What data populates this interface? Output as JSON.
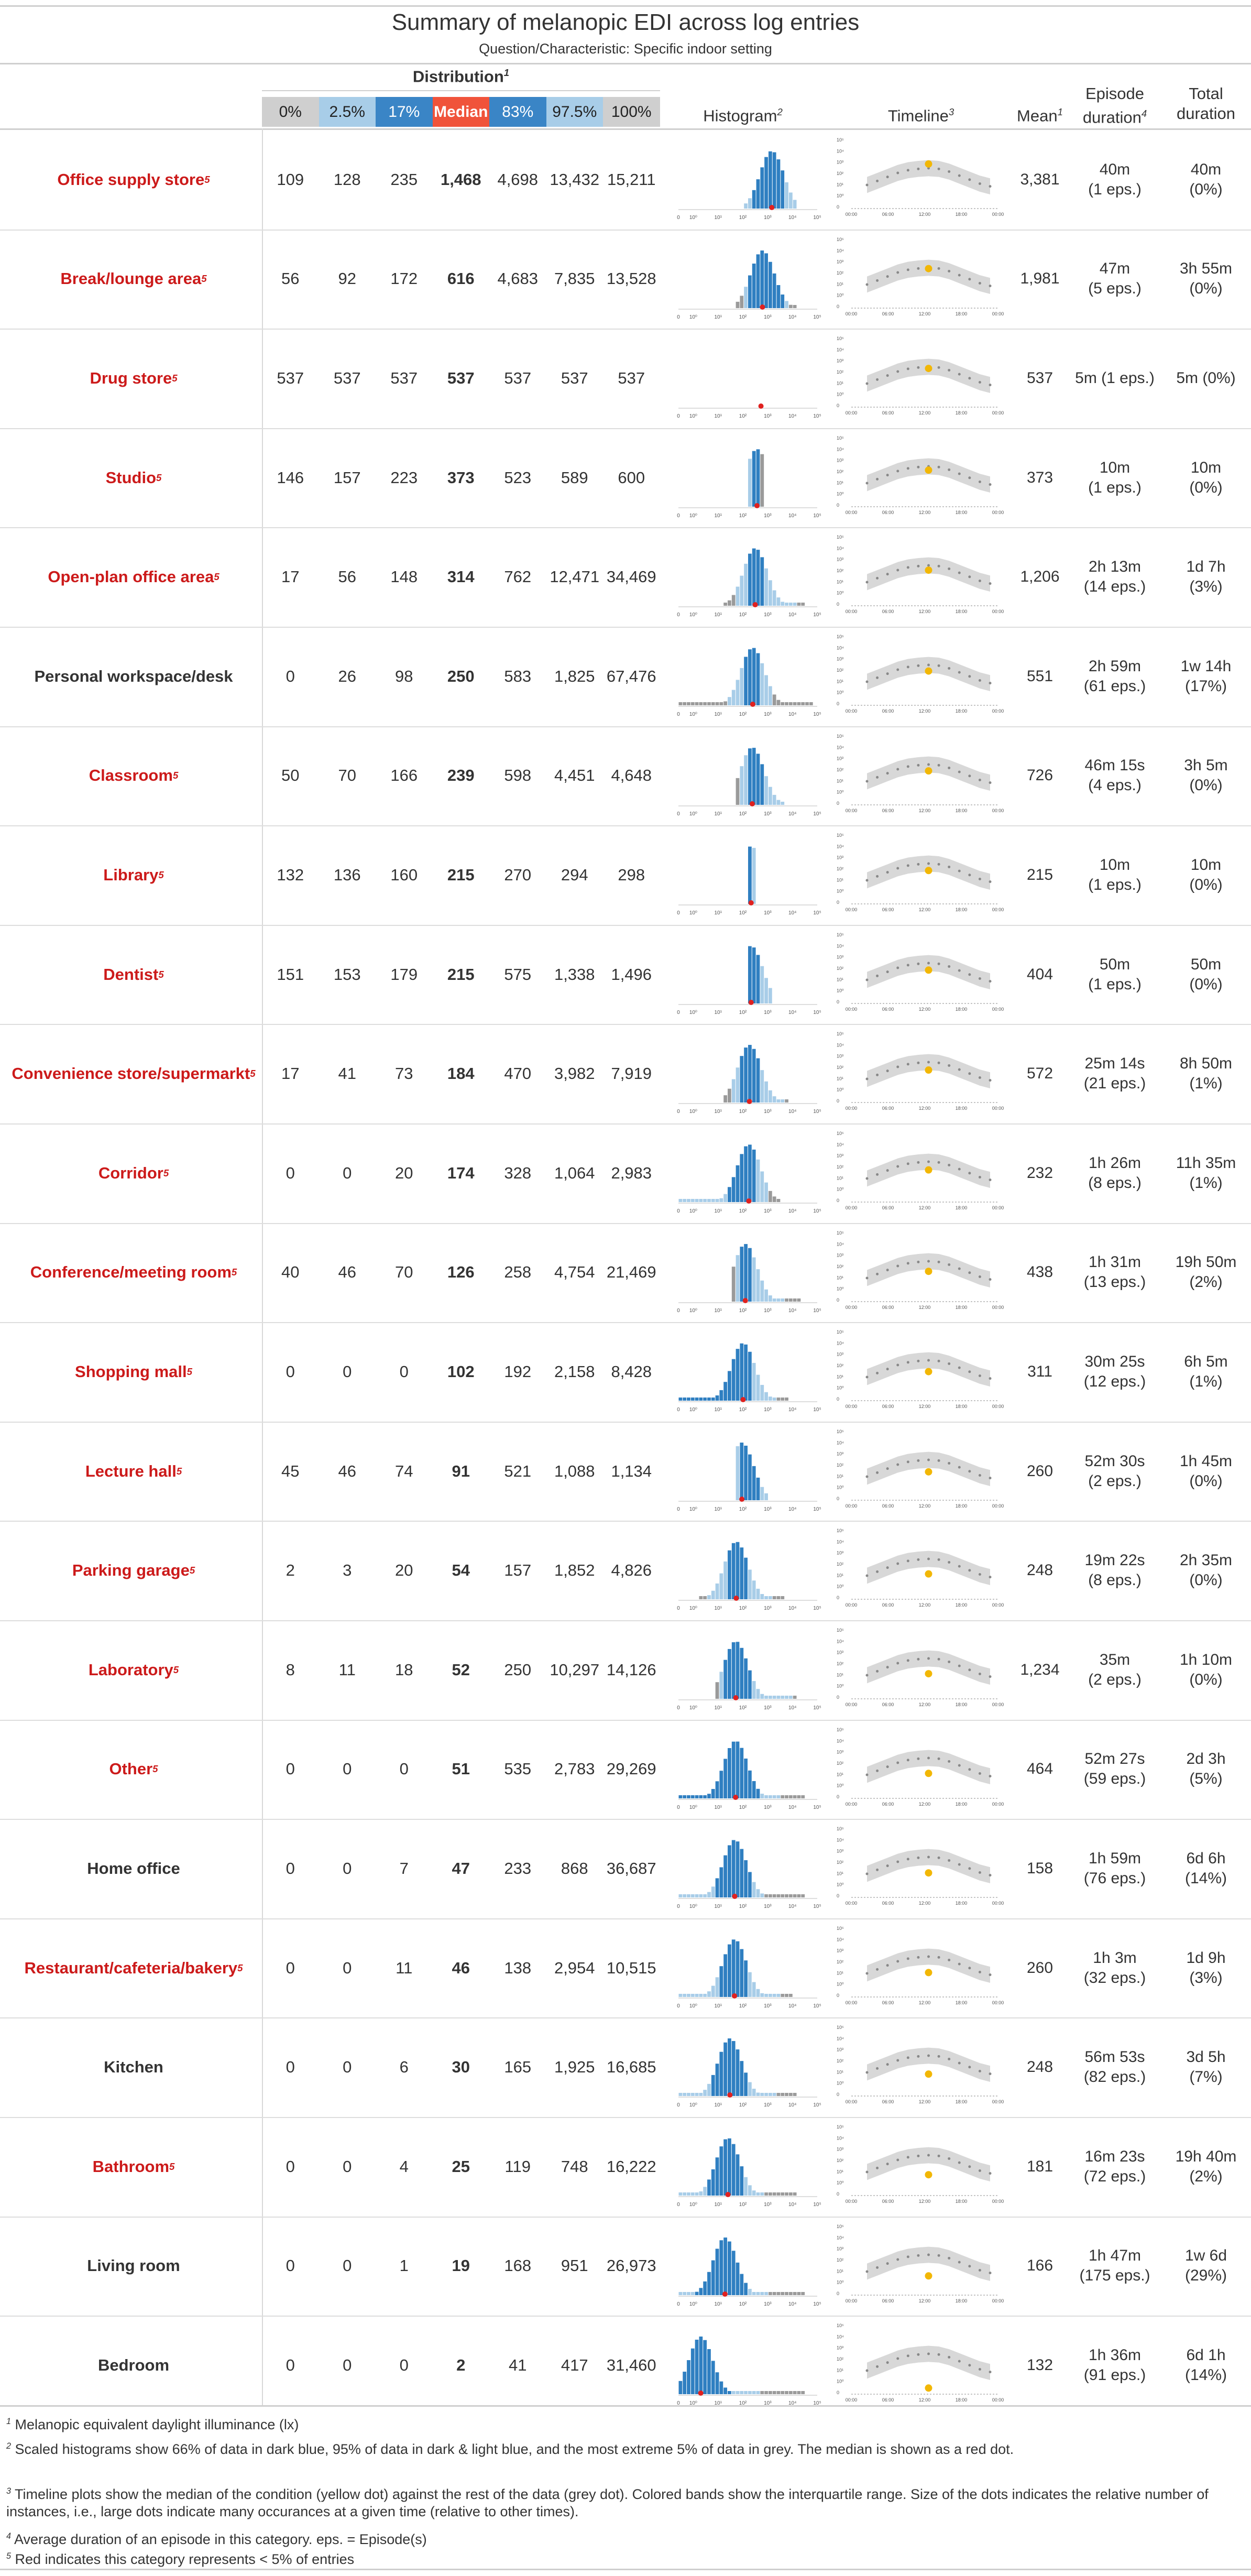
{
  "title": "Summary of melanopic EDI across log entries",
  "subtitle": "Question/Characteristic: Specific indoor setting",
  "headers": {
    "distribution": "Distribution",
    "distribution_fn": "1",
    "histogram": "Histogram",
    "histogram_fn": "2",
    "timeline": "Timeline",
    "timeline_fn": "3",
    "mean": "Mean",
    "mean_fn": "1",
    "episode_duration": "Episode duration",
    "episode_fn": "4",
    "total_duration": "Total duration"
  },
  "quantiles": [
    "0%",
    "2.5%",
    "17%",
    "Median",
    "83%",
    "97.5%",
    "100%"
  ],
  "quantile_colors": [
    "#cfcfcf",
    "#a8cde8",
    "#3a85c6",
    "#f0533a",
    "#3a85c6",
    "#a8cde8",
    "#cfcfcf"
  ],
  "red_color": "#cc1a1a",
  "hist_axis_ticks": [
    "0",
    "10⁰",
    "10¹",
    "10²",
    "10³",
    "10⁴",
    "10⁵"
  ],
  "timeline_y_ticks": [
    "10⁵",
    "10⁴",
    "10³",
    "10²",
    "10¹",
    "10⁰",
    "0"
  ],
  "timeline_x_ticks": [
    "00:00",
    "06:00",
    "12:00",
    "18:00",
    "00:00"
  ],
  "rows": [
    {
      "name": "Office supply store",
      "rare": true,
      "vals": [
        "109",
        "128",
        "235",
        "1,468",
        "4,698",
        "13,432",
        "15,211"
      ],
      "mean": "3,381",
      "ep1": "40m",
      "ep2": "(1 eps.)",
      "tot1": "40m",
      "tot2": "(0%)"
    },
    {
      "name": "Break/lounge area",
      "rare": true,
      "vals": [
        "56",
        "92",
        "172",
        "616",
        "4,683",
        "7,835",
        "13,528"
      ],
      "mean": "1,981",
      "ep1": "47m",
      "ep2": "(5 eps.)",
      "tot1": "3h 55m",
      "tot2": "(0%)"
    },
    {
      "name": "Drug store",
      "rare": true,
      "vals": [
        "537",
        "537",
        "537",
        "537",
        "537",
        "537",
        "537"
      ],
      "mean": "537",
      "ep1": "5m (1 eps.)",
      "ep2": "",
      "tot1": "5m (0%)",
      "tot2": ""
    },
    {
      "name": "Studio",
      "rare": true,
      "vals": [
        "146",
        "157",
        "223",
        "373",
        "523",
        "589",
        "600"
      ],
      "mean": "373",
      "ep1": "10m",
      "ep2": "(1 eps.)",
      "tot1": "10m",
      "tot2": "(0%)"
    },
    {
      "name": "Open-plan office area",
      "rare": true,
      "vals": [
        "17",
        "56",
        "148",
        "314",
        "762",
        "12,471",
        "34,469"
      ],
      "mean": "1,206",
      "ep1": "2h 13m",
      "ep2": "(14 eps.)",
      "tot1": "1d 7h",
      "tot2": "(3%)"
    },
    {
      "name": "Personal workspace/desk",
      "rare": false,
      "vals": [
        "0",
        "26",
        "98",
        "250",
        "583",
        "1,825",
        "67,476"
      ],
      "mean": "551",
      "ep1": "2h 59m",
      "ep2": "(61 eps.)",
      "tot1": "1w 14h",
      "tot2": "(17%)"
    },
    {
      "name": "Classroom",
      "rare": true,
      "vals": [
        "50",
        "70",
        "166",
        "239",
        "598",
        "4,451",
        "4,648"
      ],
      "mean": "726",
      "ep1": "46m 15s",
      "ep2": "(4 eps.)",
      "tot1": "3h 5m",
      "tot2": "(0%)"
    },
    {
      "name": "Library",
      "rare": true,
      "vals": [
        "132",
        "136",
        "160",
        "215",
        "270",
        "294",
        "298"
      ],
      "mean": "215",
      "ep1": "10m",
      "ep2": "(1 eps.)",
      "tot1": "10m",
      "tot2": "(0%)"
    },
    {
      "name": "Dentist",
      "rare": true,
      "vals": [
        "151",
        "153",
        "179",
        "215",
        "575",
        "1,338",
        "1,496"
      ],
      "mean": "404",
      "ep1": "50m",
      "ep2": "(1 eps.)",
      "tot1": "50m",
      "tot2": "(0%)"
    },
    {
      "name": "Convenience store/supermarkt",
      "rare": true,
      "vals": [
        "17",
        "41",
        "73",
        "184",
        "470",
        "3,982",
        "7,919"
      ],
      "mean": "572",
      "ep1": "25m 14s",
      "ep2": "(21 eps.)",
      "tot1": "8h 50m",
      "tot2": "(1%)"
    },
    {
      "name": "Corridor",
      "rare": true,
      "vals": [
        "0",
        "0",
        "20",
        "174",
        "328",
        "1,064",
        "2,983"
      ],
      "mean": "232",
      "ep1": "1h 26m",
      "ep2": "(8 eps.)",
      "tot1": "11h 35m",
      "tot2": "(1%)"
    },
    {
      "name": "Conference/meeting room",
      "rare": true,
      "vals": [
        "40",
        "46",
        "70",
        "126",
        "258",
        "4,754",
        "21,469"
      ],
      "mean": "438",
      "ep1": "1h 31m",
      "ep2": "(13 eps.)",
      "tot1": "19h 50m",
      "tot2": "(2%)"
    },
    {
      "name": "Shopping mall",
      "rare": true,
      "vals": [
        "0",
        "0",
        "0",
        "102",
        "192",
        "2,158",
        "8,428"
      ],
      "mean": "311",
      "ep1": "30m 25s",
      "ep2": "(12 eps.)",
      "tot1": "6h 5m",
      "tot2": "(1%)"
    },
    {
      "name": "Lecture hall",
      "rare": true,
      "vals": [
        "45",
        "46",
        "74",
        "91",
        "521",
        "1,088",
        "1,134"
      ],
      "mean": "260",
      "ep1": "52m 30s",
      "ep2": "(2 eps.)",
      "tot1": "1h 45m",
      "tot2": "(0%)"
    },
    {
      "name": "Parking garage",
      "rare": true,
      "vals": [
        "2",
        "3",
        "20",
        "54",
        "157",
        "1,852",
        "4,826"
      ],
      "mean": "248",
      "ep1": "19m 22s",
      "ep2": "(8 eps.)",
      "tot1": "2h 35m",
      "tot2": "(0%)"
    },
    {
      "name": "Laboratory",
      "rare": true,
      "vals": [
        "8",
        "11",
        "18",
        "52",
        "250",
        "10,297",
        "14,126"
      ],
      "mean": "1,234",
      "ep1": "35m",
      "ep2": "(2 eps.)",
      "tot1": "1h 10m",
      "tot2": "(0%)"
    },
    {
      "name": "Other",
      "rare": true,
      "vals": [
        "0",
        "0",
        "0",
        "51",
        "535",
        "2,783",
        "29,269"
      ],
      "mean": "464",
      "ep1": "52m 27s",
      "ep2": "(59 eps.)",
      "tot1": "2d 3h",
      "tot2": "(5%)"
    },
    {
      "name": "Home office",
      "rare": false,
      "vals": [
        "0",
        "0",
        "7",
        "47",
        "233",
        "868",
        "36,687"
      ],
      "mean": "158",
      "ep1": "1h 59m",
      "ep2": "(76 eps.)",
      "tot1": "6d 6h",
      "tot2": "(14%)"
    },
    {
      "name": "Restaurant/cafeteria/bakery",
      "rare": true,
      "vals": [
        "0",
        "0",
        "11",
        "46",
        "138",
        "2,954",
        "10,515"
      ],
      "mean": "260",
      "ep1": "1h 3m",
      "ep2": "(32 eps.)",
      "tot1": "1d 9h",
      "tot2": "(3%)"
    },
    {
      "name": "Kitchen",
      "rare": false,
      "vals": [
        "0",
        "0",
        "6",
        "30",
        "165",
        "1,925",
        "16,685"
      ],
      "mean": "248",
      "ep1": "56m 53s",
      "ep2": "(82 eps.)",
      "tot1": "3d 5h",
      "tot2": "(7%)"
    },
    {
      "name": "Bathroom",
      "rare": true,
      "vals": [
        "0",
        "0",
        "4",
        "25",
        "119",
        "748",
        "16,222"
      ],
      "mean": "181",
      "ep1": "16m 23s",
      "ep2": "(72 eps.)",
      "tot1": "19h 40m",
      "tot2": "(2%)"
    },
    {
      "name": "Living room",
      "rare": false,
      "vals": [
        "0",
        "0",
        "1",
        "19",
        "168",
        "951",
        "26,973"
      ],
      "mean": "166",
      "ep1": "1h 47m",
      "ep2": "(175 eps.)",
      "tot1": "1w 6d",
      "tot2": "(29%)"
    },
    {
      "name": "Bedroom",
      "rare": false,
      "vals": [
        "0",
        "0",
        "0",
        "2",
        "41",
        "417",
        "31,460"
      ],
      "mean": "132",
      "ep1": "1h 36m",
      "ep2": "(91 eps.)",
      "tot1": "6d 1h",
      "tot2": "(14%)"
    }
  ],
  "chart_data": {
    "type": "table",
    "title": "Summary of melanopic EDI across log entries",
    "subtitle": "Question/Characteristic: Specific indoor setting",
    "columns": [
      "Distribution",
      "Histogram",
      "Timeline",
      "Mean",
      "Episode duration",
      "Total duration"
    ],
    "quantiles": [
      "0%",
      "2.5%",
      "17%",
      "Median",
      "83%",
      "97.5%",
      "100%"
    ],
    "median_values": [
      1468,
      616,
      537,
      373,
      314,
      250,
      239,
      215,
      215,
      184,
      174,
      126,
      102,
      91,
      54,
      52,
      51,
      47,
      46,
      30,
      25,
      19,
      2
    ],
    "timeline_reference_median_log": [
      1.6,
      1.9,
      2.2,
      2.5,
      2.7,
      2.8,
      2.85,
      2.8,
      2.6,
      2.3,
      2.0,
      1.7,
      1.5
    ]
  },
  "footnotes": [
    {
      "n": "1",
      "text": "Melanopic equivalent daylight illuminance (lx)"
    },
    {
      "n": "2",
      "text": "Scaled histograms show 66% of data in dark blue, 95% of data in dark & light blue, and the most extreme 5% of data in grey. The median is shown as a red dot."
    },
    {
      "n": "3",
      "text": "Timeline plots show the median of the condition (yellow dot) against the rest of the data (grey dot). Colored bands show the interquartile range. Size of the dots indicates the relative number of instances, i.e., large dots indicate many occurances at a given time (relative to other times)."
    },
    {
      "n": "4",
      "text": "Average duration of an episode in this category. eps. = Episode(s)"
    },
    {
      "n": "5",
      "text": "Red indicates this category represents < 5% of entries"
    }
  ]
}
